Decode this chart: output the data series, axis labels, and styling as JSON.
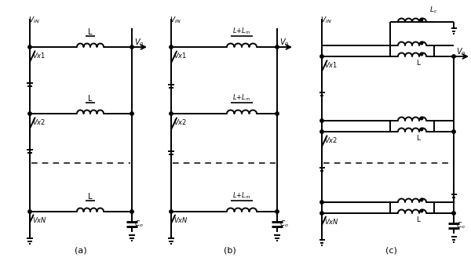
{
  "background": "#ffffff",
  "line_color": "#000000",
  "line_width": 1.4,
  "panels": [
    "(a)",
    "(b)",
    "(c)"
  ],
  "fig_w": 6.0,
  "fig_h": 3.33,
  "dpi": 100
}
